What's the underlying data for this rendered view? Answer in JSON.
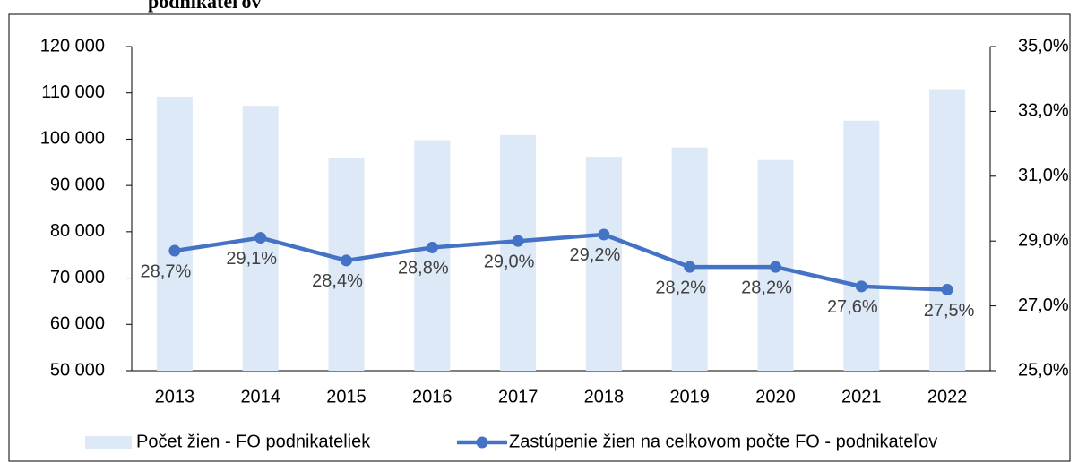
{
  "chart_data": {
    "type": "bar-line",
    "title": "podnikateľov",
    "categories": [
      "2013",
      "2014",
      "2015",
      "2016",
      "2017",
      "2018",
      "2019",
      "2020",
      "2021",
      "2022"
    ],
    "series": [
      {
        "name": "Počet žien - FO podnikateliek",
        "type": "bar",
        "color": "#dde9f6",
        "values": [
          109200,
          107200,
          95900,
          99800,
          100900,
          96200,
          98200,
          95500,
          104000,
          110800
        ]
      },
      {
        "name": "Zastúpenie žien na celkovom počte FO - podnikateľov",
        "type": "line",
        "axis": "y2",
        "color": "#4472c4",
        "values": [
          28.7,
          29.1,
          28.4,
          28.8,
          29.0,
          29.2,
          28.2,
          28.2,
          27.6,
          27.5
        ],
        "value_labels": [
          "28,7%",
          "29,1%",
          "28,4%",
          "28,8%",
          "29,0%",
          "29,2%",
          "28,2%",
          "28,2%",
          "27,6%",
          "27,5%"
        ]
      }
    ],
    "ylim": [
      50000,
      120000
    ],
    "yticks": [
      {
        "value": 50000,
        "label": "50 000"
      },
      {
        "value": 60000,
        "label": "60 000"
      },
      {
        "value": 70000,
        "label": "70 000"
      },
      {
        "value": 80000,
        "label": "80 000"
      },
      {
        "value": 90000,
        "label": "90 000"
      },
      {
        "value": 100000,
        "label": "100 000"
      },
      {
        "value": 110000,
        "label": "110 000"
      },
      {
        "value": 120000,
        "label": "120 000"
      }
    ],
    "y2lim": [
      25,
      35
    ],
    "y2ticks": [
      {
        "value": 25,
        "label": "25,0%"
      },
      {
        "value": 27,
        "label": "27,0%"
      },
      {
        "value": 29,
        "label": "29,0%"
      },
      {
        "value": 31,
        "label": "31,0%"
      },
      {
        "value": 33,
        "label": "33,0%"
      },
      {
        "value": 35,
        "label": "35,0%"
      }
    ],
    "legend": "bottom"
  }
}
